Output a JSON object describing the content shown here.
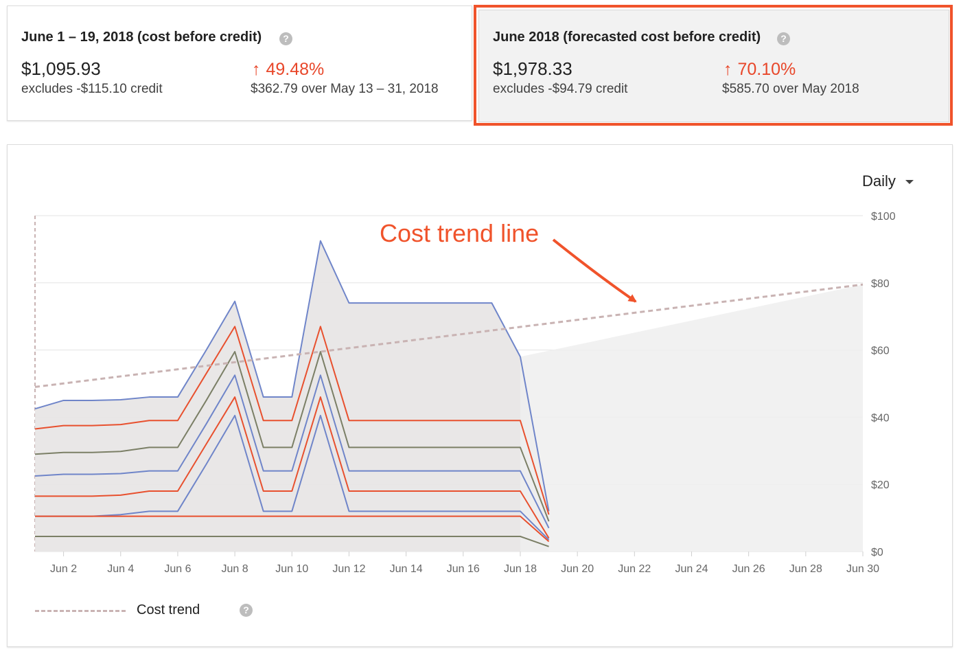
{
  "cards": [
    {
      "title": "June 1 – 19, 2018 (cost before credit)",
      "value": "$1,095.93",
      "credit_note": "excludes -$115.10 credit",
      "change_pct": "49.48%",
      "change_note": "$362.79 over May 13 – 31, 2018"
    },
    {
      "title": "June 2018 (forecasted cost before credit)",
      "value": "$1,978.33",
      "credit_note": "excludes -$94.79 credit",
      "change_pct": "70.10%",
      "change_note": "$585.70 over May 2018",
      "highlighted": true
    }
  ],
  "help_glyph": "?",
  "arrow_glyph": "↑",
  "granularity": {
    "selected": "Daily"
  },
  "annotation": "Cost trend line",
  "legend": {
    "label": "Cost trend"
  },
  "colors": {
    "accent_red": "#e8472a",
    "highlight_border": "#f0532b",
    "blue": "#6f85c9",
    "orange": "#e8502e",
    "olive": "#7b7f66",
    "trend": "#c9b3b3",
    "area_fill": "#e8e6e6"
  },
  "chart_data": {
    "type": "line",
    "x": [
      "Jun 1",
      "Jun 2",
      "Jun 3",
      "Jun 4",
      "Jun 5",
      "Jun 6",
      "Jun 7",
      "Jun 8",
      "Jun 9",
      "Jun 10",
      "Jun 11",
      "Jun 12",
      "Jun 13",
      "Jun 14",
      "Jun 15",
      "Jun 16",
      "Jun 17",
      "Jun 18",
      "Jun 19"
    ],
    "x_ticks": [
      "Jun 2",
      "Jun 4",
      "Jun 6",
      "Jun 8",
      "Jun 10",
      "Jun 12",
      "Jun 14",
      "Jun 16",
      "Jun 18",
      "Jun 20",
      "Jun 22",
      "Jun 24",
      "Jun 26",
      "Jun 28",
      "Jun 30"
    ],
    "x_range": [
      "Jun 1",
      "Jun 30"
    ],
    "y_ticks": [
      "$0",
      "$20",
      "$40",
      "$60",
      "$80",
      "$100"
    ],
    "ylim": [
      0,
      100
    ],
    "y_axis_position": "right",
    "grid": true,
    "series": [
      {
        "color": "blue",
        "values": [
          42.5,
          45,
          45,
          45.2,
          46,
          46,
          60,
          74.5,
          46,
          46,
          92.5,
          74,
          74,
          74,
          74,
          74,
          74,
          58,
          12
        ]
      },
      {
        "color": "orange",
        "values": [
          36.5,
          37.5,
          37.5,
          37.8,
          39,
          39,
          53,
          67,
          39,
          39,
          67,
          39,
          39,
          39,
          39,
          39,
          39,
          39,
          11
        ]
      },
      {
        "color": "olive",
        "values": [
          29,
          29.5,
          29.5,
          29.8,
          31,
          31,
          45,
          59.5,
          31,
          31,
          59.5,
          31,
          31,
          31,
          31,
          31,
          31,
          31,
          9
        ]
      },
      {
        "color": "blue",
        "values": [
          22.5,
          23,
          23,
          23.2,
          24,
          24,
          38,
          52.5,
          24,
          24,
          52.5,
          24,
          24,
          24,
          24,
          24,
          24,
          24,
          7
        ]
      },
      {
        "color": "orange",
        "values": [
          16.5,
          16.5,
          16.5,
          16.8,
          18,
          18,
          32,
          46,
          18,
          18,
          46,
          18,
          18,
          18,
          18,
          18,
          18,
          18,
          4
        ]
      },
      {
        "color": "blue",
        "values": [
          10.5,
          10.5,
          10.5,
          11,
          12,
          12,
          26,
          40.5,
          12,
          12,
          40.5,
          12,
          12,
          12,
          12,
          12,
          12,
          12,
          3.5
        ]
      },
      {
        "color": "orange",
        "values": [
          10.5,
          10.5,
          10.5,
          10.5,
          10.5,
          10.5,
          10.5,
          10.5,
          10.5,
          10.5,
          10.5,
          10.5,
          10.5,
          10.5,
          10.5,
          10.5,
          10.5,
          10.5,
          3
        ]
      },
      {
        "color": "olive",
        "values": [
          4.5,
          4.5,
          4.5,
          4.5,
          4.5,
          4.5,
          4.5,
          4.5,
          4.5,
          4.5,
          4.5,
          4.5,
          4.5,
          4.5,
          4.5,
          4.5,
          4.5,
          4.5,
          1.5
        ]
      }
    ],
    "trend": {
      "start": {
        "x": "Jun 1",
        "y": 49
      },
      "end": {
        "x": "Jun 30",
        "y": 79.5
      }
    },
    "forecast_area_top": 79.5
  }
}
